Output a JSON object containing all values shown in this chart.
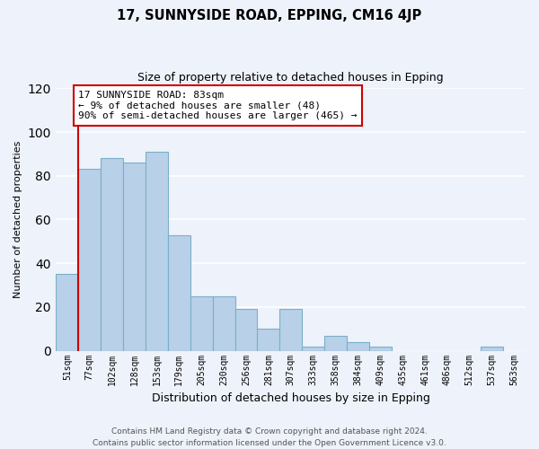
{
  "title": "17, SUNNYSIDE ROAD, EPPING, CM16 4JP",
  "subtitle": "Size of property relative to detached houses in Epping",
  "xlabel": "Distribution of detached houses by size in Epping",
  "ylabel": "Number of detached properties",
  "bar_labels": [
    "51sqm",
    "77sqm",
    "102sqm",
    "128sqm",
    "153sqm",
    "179sqm",
    "205sqm",
    "230sqm",
    "256sqm",
    "281sqm",
    "307sqm",
    "333sqm",
    "358sqm",
    "384sqm",
    "409sqm",
    "435sqm",
    "461sqm",
    "486sqm",
    "512sqm",
    "537sqm",
    "563sqm"
  ],
  "bar_values": [
    35,
    83,
    88,
    86,
    91,
    53,
    25,
    25,
    19,
    10,
    19,
    2,
    7,
    4,
    2,
    0,
    0,
    0,
    0,
    2,
    0
  ],
  "bar_color": "#b8d0e8",
  "bar_edge_color": "#7aafc8",
  "vline_color": "#cc0000",
  "vline_x_index": 1,
  "annotation_text": "17 SUNNYSIDE ROAD: 83sqm\n← 9% of detached houses are smaller (48)\n90% of semi-detached houses are larger (465) →",
  "annotation_box_color": "#ffffff",
  "annotation_box_edge": "#cc0000",
  "ylim": [
    0,
    120
  ],
  "yticks": [
    0,
    20,
    40,
    60,
    80,
    100,
    120
  ],
  "footer_line1": "Contains HM Land Registry data © Crown copyright and database right 2024.",
  "footer_line2": "Contains public sector information licensed under the Open Government Licence v3.0.",
  "bg_color": "#eef2fa",
  "grid_color": "#ffffff",
  "title_fontsize": 10.5,
  "subtitle_fontsize": 9,
  "ylabel_fontsize": 8,
  "xlabel_fontsize": 9,
  "tick_fontsize": 7,
  "annot_fontsize": 8,
  "footer_fontsize": 6.5
}
